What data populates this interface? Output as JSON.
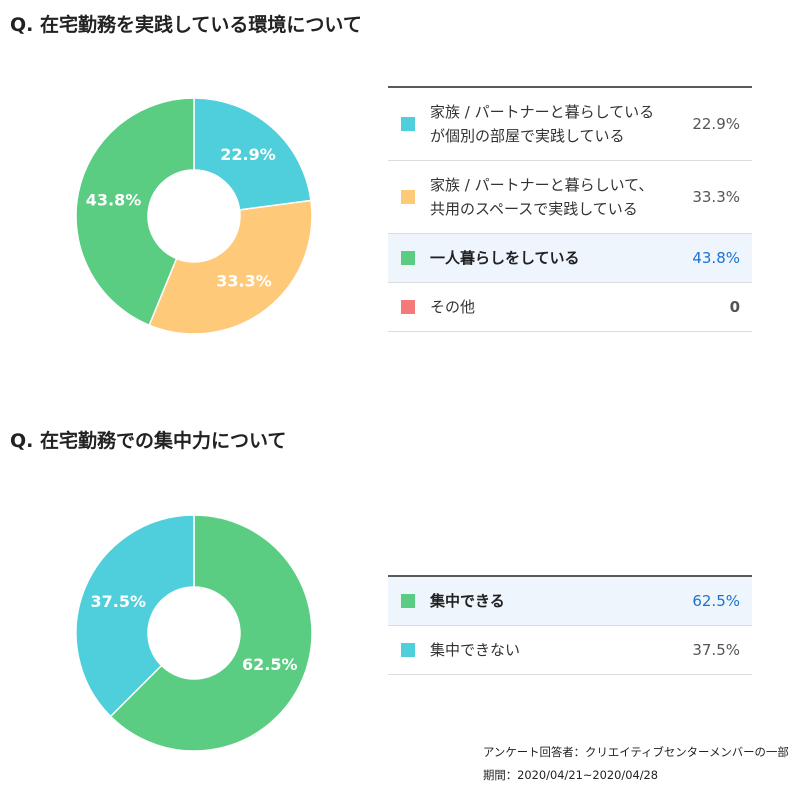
{
  "chart_data": [
    {
      "type": "pie",
      "title": "Q. 在宅勤務を実践している環境について",
      "categories": [
        "家族 / パートナーと暮らしている\nが個別の部屋で実践している",
        "家族 / パートナーと暮らしいて、\n共用のスペースで実践している",
        "一人暮らしをしている",
        "その他"
      ],
      "values": [
        22.9,
        33.3,
        43.8,
        0
      ],
      "value_labels": [
        "22.9%",
        "33.3%",
        "43.8%",
        "0"
      ],
      "colors": [
        "#4FCEDB",
        "#FFC97A",
        "#5ACD82",
        "#F47A7A"
      ],
      "legend": "right"
    },
    {
      "type": "pie",
      "title": "Q. 在宅勤務での集中力について",
      "categories": [
        "集中できる",
        "集中できない"
      ],
      "values": [
        62.5,
        37.5
      ],
      "value_labels": [
        "62.5%",
        "37.5%"
      ],
      "colors": [
        "#5ACD82",
        "#4FCEDB"
      ],
      "legend": "right"
    }
  ],
  "footer": {
    "respondents": "アンケート回答者：クリエイティブセンターメンバーの一部",
    "period": "期間：2020/04/21~2020/04/28"
  },
  "style": {
    "highlight_background": "#EEF5FC",
    "highlight_value_color": "#1A73D1"
  }
}
